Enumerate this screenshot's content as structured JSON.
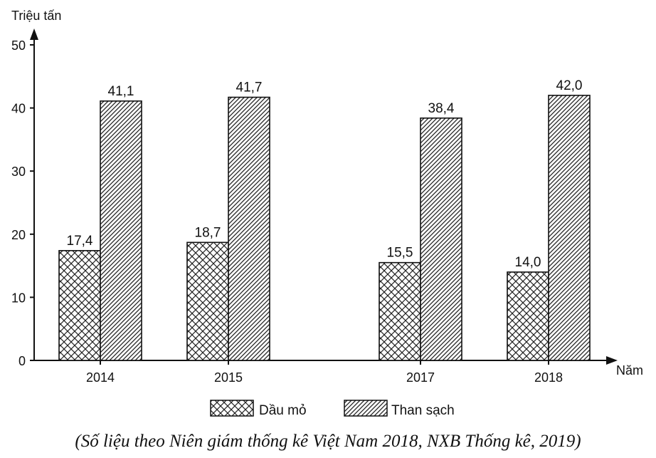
{
  "chart_data": {
    "type": "bar",
    "ylabel": "Triệu tấn",
    "xlabel": "Năm",
    "categories": [
      "2014",
      "2015",
      "2017",
      "2018"
    ],
    "series": [
      {
        "name": "Dầu mỏ",
        "values": [
          17.4,
          18.7,
          15.5,
          14.0
        ],
        "labels": [
          "17,4",
          "18,7",
          "15,5",
          "14,0"
        ],
        "pattern": "crosshatch"
      },
      {
        "name": "Than sạch",
        "values": [
          41.1,
          41.7,
          38.4,
          42.0
        ],
        "labels": [
          "41,1",
          "41,7",
          "38,4",
          "42,0"
        ],
        "pattern": "diagonal"
      }
    ],
    "ylim": [
      0,
      50
    ],
    "yticks": [
      0,
      10,
      20,
      30,
      40,
      50
    ],
    "grid": false,
    "legend": "bottom"
  },
  "caption": "(Số liệu theo Niên giám thống kê Việt Nam 2018, NXB Thống kê, 2019)"
}
